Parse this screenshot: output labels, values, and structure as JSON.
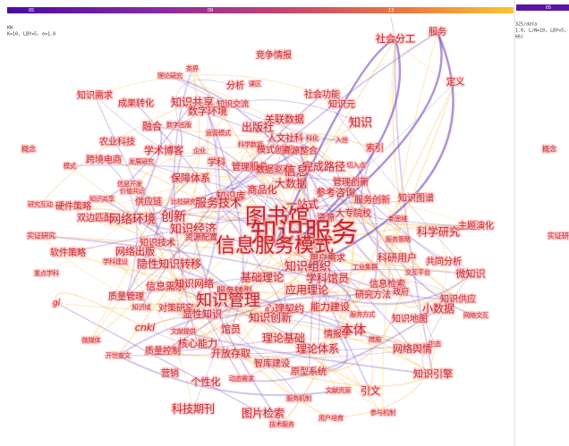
{
  "timeline": {
    "labels": [
      "05",
      "09",
      "13"
    ]
  },
  "info": {
    "lines": [
      "KN",
      "K=10, LBY=5, e=1.0"
    ]
  },
  "right_panel": {
    "timeline_label": "05",
    "lines": [
      "325/data",
      "1.0, L/N=10, LBY=5, e=1",
      "66)"
    ],
    "nodes": [
      "概念",
      "实证研"
    ]
  },
  "network": {
    "nodes": [
      "社会分工",
      "服务",
      "竞争情报",
      "茶界",
      "理论研究",
      "分析",
      "课区",
      "定义",
      "知识需求",
      "成果转化",
      "知识共享",
      "知识交流",
      "社会功能",
      "知识元",
      "数字环境",
      "关联数据",
      "知识",
      "融合",
      "数字出版",
      "出版社",
      "运营模式",
      "人文社科",
      "科化",
      "入世",
      "农业科技",
      "科学数据",
      "模式创新",
      "资源整合",
      "索引",
      "概念",
      "学术博客",
      "企业",
      "跨境电商",
      "发展研究",
      "学科",
      "管理服务",
      "数据驱动",
      "信息",
      "完成路径",
      "切入点",
      "模式",
      "保障体系",
      "大数据",
      "管理创新",
      "信息开发",
      "价值共识",
      "商品化",
      "参考咨询",
      "知识图谱",
      "知识共享",
      "供应链",
      "比较研究",
      "知识库",
      "服务技术",
      "一站式",
      "服务创新",
      "研究互动",
      "硬件策略",
      "大专院校",
      "双边匹配",
      "网络环境",
      "创新",
      "图书馆",
      "资源",
      "新思维",
      "知识经济",
      "知识服务",
      "科学研究",
      "主题演化",
      "实证研究",
      "资源配置",
      "服务策略",
      "信息服务模式",
      "知识技术",
      "网络出版",
      "软件策略",
      "用户需求",
      "科研用户",
      "学科建设",
      "隐性知识转移",
      "知识组织",
      "工业集群",
      "共同分析",
      "重点学科",
      "交互平台",
      "基础理论",
      "学科馆员",
      "微知识",
      "信息需求",
      "知识网络",
      "服务转型",
      "应用理论",
      "信息检索",
      "政府",
      "质量管理",
      "研究方法",
      "知识供应",
      "gi",
      "知识管理",
      "对策研究",
      "心理契约",
      "能力建设",
      "小数据",
      "知识域",
      "显性知识",
      "服务方式",
      "网络交互",
      "知识创新",
      "知识地图",
      "cnki",
      "馆员",
      "文献提供",
      "理论基础",
      "情报学",
      "本体",
      "微媒体",
      "核心能力",
      "措施",
      "生态",
      "质量控制",
      "理论体系",
      "网络舆情",
      "开放存取",
      "开世宣文",
      "智库建设",
      "营销",
      "原型系统",
      "知识引擎",
      "个性化",
      "动态需求",
      "文献资源",
      "引文",
      "服务机制",
      "科技期刊",
      "图片检索",
      "技术服务",
      "用户培育",
      "参与机制"
    ]
  }
}
